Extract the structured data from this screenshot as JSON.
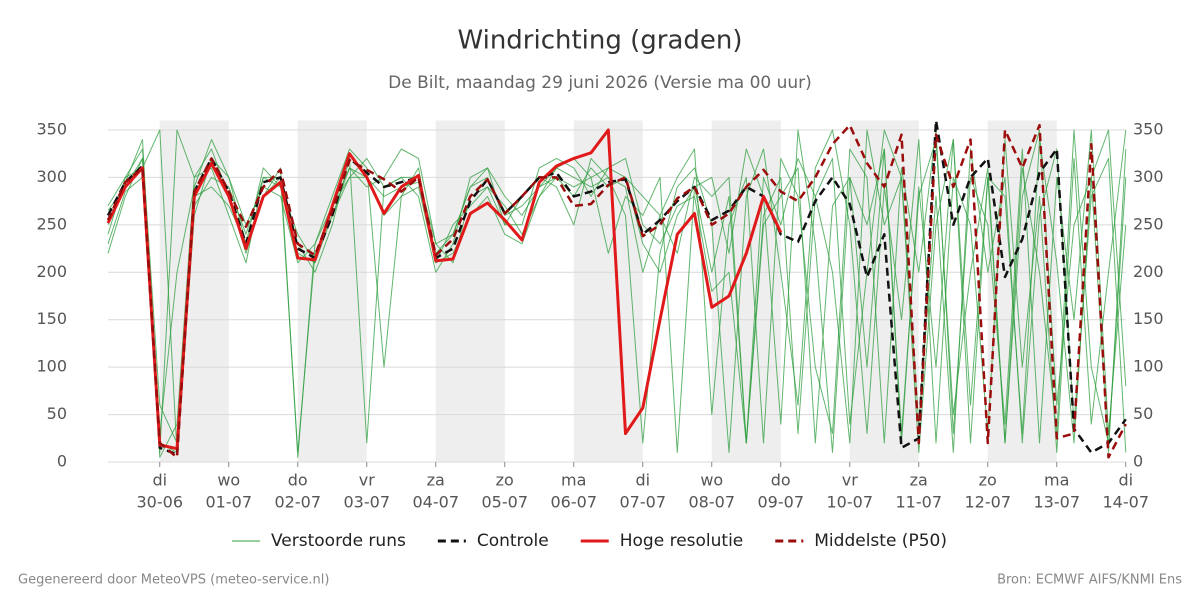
{
  "chart_data": {
    "type": "line",
    "title": "Windrichting (graden)",
    "subtitle": "De Bilt, maandag 29 juni 2026 (Versie ma 00 uur)",
    "footer_left": "Gegenereerd door MeteoVPS (meteo-service.nl)",
    "footer_right": "Bron: ECMWF AIFS/KNMI Ens",
    "x": [
      "2026-06-29T06:00",
      "2026-06-29T12:00",
      "2026-06-29T18:00",
      "2026-06-30T00:00",
      "2026-06-30T06:00",
      "2026-06-30T12:00",
      "2026-06-30T18:00",
      "2026-07-01T00:00",
      "2026-07-01T06:00",
      "2026-07-01T12:00",
      "2026-07-01T18:00",
      "2026-07-02T00:00",
      "2026-07-02T06:00",
      "2026-07-02T12:00",
      "2026-07-02T18:00",
      "2026-07-03T00:00",
      "2026-07-03T06:00",
      "2026-07-03T12:00",
      "2026-07-03T18:00",
      "2026-07-04T00:00",
      "2026-07-04T06:00",
      "2026-07-04T12:00",
      "2026-07-04T18:00",
      "2026-07-05T00:00",
      "2026-07-05T06:00",
      "2026-07-05T12:00",
      "2026-07-05T18:00",
      "2026-07-06T00:00",
      "2026-07-06T06:00",
      "2026-07-06T12:00",
      "2026-07-06T18:00",
      "2026-07-07T00:00",
      "2026-07-07T06:00",
      "2026-07-07T12:00",
      "2026-07-07T18:00",
      "2026-07-08T00:00",
      "2026-07-08T06:00",
      "2026-07-08T12:00",
      "2026-07-08T18:00",
      "2026-07-09T00:00",
      "2026-07-09T06:00",
      "2026-07-09T12:00",
      "2026-07-09T18:00",
      "2026-07-10T00:00",
      "2026-07-10T06:00",
      "2026-07-10T12:00",
      "2026-07-10T18:00",
      "2026-07-11T00:00",
      "2026-07-11T06:00",
      "2026-07-11T12:00",
      "2026-07-11T18:00",
      "2026-07-12T00:00",
      "2026-07-12T06:00",
      "2026-07-12T12:00",
      "2026-07-12T18:00",
      "2026-07-13T00:00",
      "2026-07-13T06:00",
      "2026-07-13T12:00",
      "2026-07-13T18:00",
      "2026-07-14T00:00"
    ],
    "xlim": [
      "2026-06-29T06:00",
      "2026-07-14T00:00"
    ],
    "xticks": [
      {
        "value": "2026-06-30T00:00",
        "label": [
          "di",
          "30-06"
        ]
      },
      {
        "value": "2026-07-01T00:00",
        "label": [
          "wo",
          "01-07"
        ]
      },
      {
        "value": "2026-07-02T00:00",
        "label": [
          "do",
          "02-07"
        ]
      },
      {
        "value": "2026-07-03T00:00",
        "label": [
          "vr",
          "03-07"
        ]
      },
      {
        "value": "2026-07-04T00:00",
        "label": [
          "za",
          "04-07"
        ]
      },
      {
        "value": "2026-07-05T00:00",
        "label": [
          "zo",
          "05-07"
        ]
      },
      {
        "value": "2026-07-06T00:00",
        "label": [
          "ma",
          "06-07"
        ]
      },
      {
        "value": "2026-07-07T00:00",
        "label": [
          "di",
          "07-07"
        ]
      },
      {
        "value": "2026-07-08T00:00",
        "label": [
          "wo",
          "08-07"
        ]
      },
      {
        "value": "2026-07-09T00:00",
        "label": [
          "do",
          "09-07"
        ]
      },
      {
        "value": "2026-07-10T00:00",
        "label": [
          "vr",
          "10-07"
        ]
      },
      {
        "value": "2026-07-11T00:00",
        "label": [
          "za",
          "11-07"
        ]
      },
      {
        "value": "2026-07-12T00:00",
        "label": [
          "zo",
          "12-07"
        ]
      },
      {
        "value": "2026-07-13T00:00",
        "label": [
          "ma",
          "13-07"
        ]
      },
      {
        "value": "2026-07-14T00:00",
        "label": [
          "di",
          "14-07"
        ]
      }
    ],
    "shaded": [
      [
        "2026-06-30T00:00",
        "2026-07-01T00:00"
      ],
      [
        "2026-07-02T00:00",
        "2026-07-03T00:00"
      ],
      [
        "2026-07-04T00:00",
        "2026-07-05T00:00"
      ],
      [
        "2026-07-06T00:00",
        "2026-07-07T00:00"
      ],
      [
        "2026-07-08T00:00",
        "2026-07-09T00:00"
      ],
      [
        "2026-07-10T00:00",
        "2026-07-11T00:00"
      ],
      [
        "2026-07-12T00:00",
        "2026-07-13T00:00"
      ]
    ],
    "ylim": [
      0,
      360
    ],
    "yticks": [
      0,
      50,
      100,
      150,
      200,
      250,
      300,
      350
    ],
    "grid": true,
    "ensemble": {
      "name": "Verstoorde runs",
      "color": "#2e9e3e",
      "runs": [
        [
          240,
          300,
          330,
          60,
          20,
          270,
          300,
          290,
          240,
          300,
          290,
          220,
          210,
          270,
          310,
          300,
          280,
          290,
          295,
          220,
          240,
          290,
          300,
          260,
          270,
          290,
          300,
          290,
          300,
          310,
          320,
          250,
          230,
          270,
          280,
          180,
          200,
          20,
          260,
          300,
          30,
          280,
          320,
          40,
          200,
          350,
          300,
          10,
          250,
          340,
          60,
          300,
          20,
          310,
          200,
          30,
          350,
          100,
          20,
          300
        ],
        [
          265,
          290,
          320,
          10,
          350,
          300,
          330,
          280,
          220,
          280,
          310,
          5,
          230,
          280,
          330,
          310,
          100,
          280,
          310,
          210,
          250,
          270,
          290,
          270,
          240,
          280,
          310,
          300,
          290,
          300,
          260,
          20,
          220,
          290,
          310,
          250,
          10,
          280,
          330,
          200,
          60,
          310,
          350,
          250,
          30,
          290,
          150,
          340,
          20,
          300,
          250,
          30,
          340,
          100,
          280,
          10,
          320,
          40,
          200,
          350
        ],
        [
          230,
          285,
          300,
          30,
          200,
          290,
          340,
          300,
          230,
          280,
          300,
          230,
          200,
          250,
          320,
          20,
          290,
          300,
          280,
          200,
          230,
          300,
          310,
          250,
          250,
          310,
          320,
          310,
          280,
          310,
          300,
          280,
          260,
          220,
          300,
          280,
          300,
          20,
          250,
          280,
          310,
          20,
          270,
          300,
          100,
          330,
          30,
          280,
          340,
          50,
          200,
          310,
          20,
          280,
          350,
          60,
          250,
          300,
          10,
          330
        ],
        [
          250,
          295,
          340,
          5,
          40,
          300,
          310,
          260,
          210,
          300,
          300,
          10,
          220,
          260,
          300,
          320,
          290,
          300,
          300,
          230,
          210,
          280,
          290,
          250,
          280,
          300,
          290,
          250,
          320,
          300,
          290,
          200,
          260,
          300,
          330,
          50,
          250,
          300,
          20,
          320,
          280,
          100,
          30,
          330,
          300,
          20,
          310,
          200,
          350,
          30,
          300,
          250,
          40,
          330,
          20,
          300,
          150,
          350,
          30,
          250
        ],
        [
          270,
          300,
          310,
          350,
          10,
          280,
          290,
          270,
          230,
          310,
          290,
          240,
          210,
          260,
          310,
          290,
          300,
          330,
          320,
          230,
          240,
          290,
          310,
          280,
          260,
          290,
          310,
          320,
          300,
          220,
          280,
          260,
          300,
          10,
          290,
          300,
          220,
          330,
          280,
          40,
          350,
          230,
          10,
          300,
          250,
          330,
          20,
          290,
          100,
          340,
          20,
          300,
          280,
          30,
          340,
          210,
          20,
          300,
          350,
          80
        ],
        [
          220,
          280,
          320,
          20,
          10,
          260,
          320,
          300,
          250,
          290,
          280,
          210,
          230,
          270,
          300,
          300,
          260,
          280,
          290,
          210,
          220,
          260,
          280,
          240,
          230,
          280,
          300,
          280,
          310,
          290,
          300,
          230,
          200,
          260,
          290,
          200,
          280,
          20,
          300,
          250,
          320,
          280,
          200,
          20,
          350,
          250,
          300,
          40,
          280,
          10,
          330,
          200,
          300,
          20,
          260,
          330,
          40,
          280,
          320,
          10
        ]
      ]
    },
    "series": [
      {
        "name": "Controle",
        "color": "#111111",
        "dash": true,
        "values": [
          260,
          295,
          312,
          15,
          8,
          285,
          320,
          285,
          230,
          295,
          300,
          225,
          215,
          260,
          320,
          305,
          290,
          295,
          300,
          215,
          225,
          275,
          298,
          262,
          280,
          300,
          305,
          280,
          285,
          295,
          298,
          240,
          255,
          275,
          290,
          255,
          265,
          290,
          280,
          240,
          232,
          275,
          300,
          272,
          195,
          240,
          15,
          25,
          360,
          250,
          300,
          320,
          195,
          235,
          305,
          330,
          35,
          10,
          20,
          45
        ]
      },
      {
        "name": "Hoge resolutie",
        "color": "#e0191b",
        "dash": false,
        "values": [
          252,
          290,
          310,
          18,
          14,
          280,
          315,
          280,
          225,
          280,
          295,
          215,
          213,
          270,
          325,
          300,
          262,
          290,
          302,
          212,
          214,
          262,
          273,
          255,
          234,
          295,
          312,
          320,
          326,
          350,
          30,
          57,
          150,
          240,
          262,
          163,
          175,
          220,
          280,
          242,
          null,
          null,
          null,
          null,
          null,
          null,
          null,
          null,
          null,
          null,
          null,
          null,
          null,
          null,
          null,
          null,
          null,
          null,
          null,
          null
        ]
      },
      {
        "name": "Middelste (P50)",
        "color": "#9b0c0c",
        "dash": true,
        "values": [
          255,
          295,
          310,
          20,
          5,
          285,
          320,
          285,
          248,
          290,
          308,
          230,
          218,
          265,
          318,
          308,
          298,
          285,
          300,
          218,
          235,
          280,
          298,
          262,
          280,
          300,
          300,
          270,
          272,
          292,
          300,
          238,
          250,
          278,
          290,
          250,
          262,
          290,
          308,
          285,
          275,
          300,
          335,
          355,
          315,
          290,
          345,
          20,
          345,
          290,
          340,
          20,
          350,
          310,
          355,
          25,
          30,
          335,
          5,
          40
        ]
      }
    ]
  }
}
